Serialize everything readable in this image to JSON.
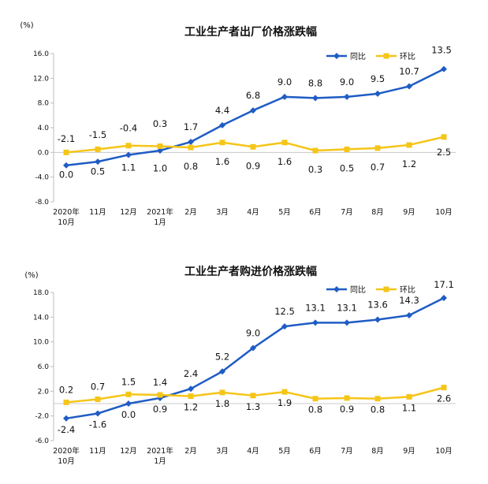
{
  "chart_data": [
    {
      "type": "line",
      "title": "工业生产者出厂价格涨跌幅",
      "unit_label": "(%)",
      "legend_position": "top-right",
      "ylim": [
        -8.0,
        16.0
      ],
      "yticks": [
        "16.0",
        "12.0",
        "8.0",
        "4.0",
        "0.0",
        "-4.0",
        "-8.0"
      ],
      "ytick_values": [
        16,
        12,
        8,
        4,
        0,
        -4,
        -8
      ],
      "categories": [
        [
          "2020年",
          "10月"
        ],
        [
          "11月"
        ],
        [
          "12月"
        ],
        [
          "2021年",
          "1月"
        ],
        [
          "2月"
        ],
        [
          "3月"
        ],
        [
          "4月"
        ],
        [
          "5月"
        ],
        [
          "6月"
        ],
        [
          "7月"
        ],
        [
          "8月"
        ],
        [
          "9月"
        ],
        [
          "10月"
        ]
      ],
      "series": [
        {
          "name": "同比",
          "color": "#1f5cc4",
          "marker": "diamond",
          "values": [
            -2.1,
            -1.5,
            -0.4,
            0.3,
            1.7,
            4.4,
            6.8,
            9.0,
            8.8,
            9.0,
            9.5,
            10.7,
            13.5
          ],
          "labels": [
            "-2.1",
            "-1.5",
            "-0.4",
            "0.3",
            "1.7",
            "4.4",
            "6.8",
            "9.0",
            "8.8",
            "9.0",
            "9.5",
            "10.7",
            "13.5"
          ]
        },
        {
          "name": "环比",
          "color": "#f5c518",
          "marker": "square",
          "values": [
            0.0,
            0.5,
            1.1,
            1.0,
            0.8,
            1.6,
            0.9,
            1.6,
            0.3,
            0.5,
            0.7,
            1.2,
            2.5
          ],
          "labels": [
            "0.0",
            "0.5",
            "1.1",
            "1.0",
            "0.8",
            "1.6",
            "0.9",
            "1.6",
            "0.3",
            "0.5",
            "0.7",
            "1.2",
            "2.5"
          ]
        }
      ]
    },
    {
      "type": "line",
      "title": "工业生产者购进价格涨跌幅",
      "unit_label": "(%)",
      "legend_position": "top-right",
      "ylim": [
        -6.0,
        18.0
      ],
      "yticks": [
        "18.0",
        "14.0",
        "10.0",
        "6.0",
        "2.0",
        "-2.0",
        "-6.0"
      ],
      "ytick_values": [
        18,
        14,
        10,
        6,
        2,
        -2,
        -6
      ],
      "categories": [
        [
          "2020年",
          "10月"
        ],
        [
          "11月"
        ],
        [
          "12月"
        ],
        [
          "2021年",
          "1月"
        ],
        [
          "2月"
        ],
        [
          "3月"
        ],
        [
          "4月"
        ],
        [
          "5月"
        ],
        [
          "6月"
        ],
        [
          "7月"
        ],
        [
          "8月"
        ],
        [
          "9月"
        ],
        [
          "10月"
        ]
      ],
      "series": [
        {
          "name": "同比",
          "color": "#1f5cc4",
          "marker": "diamond",
          "values": [
            -2.4,
            -1.6,
            0.0,
            0.9,
            2.4,
            5.2,
            9.0,
            12.5,
            13.1,
            13.1,
            13.6,
            14.3,
            17.1
          ],
          "labels": [
            "-2.4",
            "-1.6",
            "0.0",
            "0.9",
            "2.4",
            "5.2",
            "9.0",
            "12.5",
            "13.1",
            "13.1",
            "13.6",
            "14.3",
            "17.1"
          ]
        },
        {
          "name": "环比",
          "color": "#f5c518",
          "marker": "square",
          "values": [
            0.2,
            0.7,
            1.5,
            1.4,
            1.2,
            1.8,
            1.3,
            1.9,
            0.8,
            0.9,
            0.8,
            1.1,
            2.6
          ],
          "labels": [
            "0.2",
            "0.7",
            "1.5",
            "1.4",
            "1.2",
            "1.8",
            "1.3",
            "1.9",
            "0.8",
            "0.9",
            "0.8",
            "1.1",
            "2.6"
          ]
        }
      ]
    }
  ]
}
